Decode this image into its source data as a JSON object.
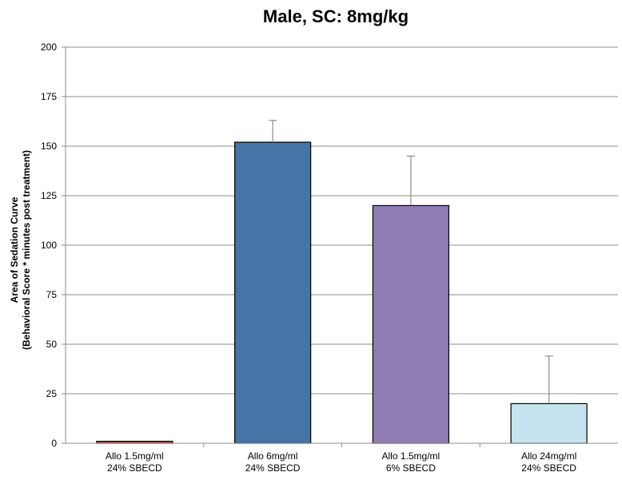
{
  "chart_data": {
    "type": "bar",
    "title": "Male, SC: 8mg/kg",
    "ylabel_line1": "Area of Sedation Curve",
    "ylabel_line2": "(Behavioral Score * minutes post treatment)",
    "xlabel": "",
    "ylim": [
      0,
      200
    ],
    "yticks": [
      0,
      25,
      50,
      75,
      100,
      125,
      150,
      175,
      200
    ],
    "grid": true,
    "legend": "none",
    "categories": [
      [
        "Allo 1.5mg/ml",
        "24% SBECD"
      ],
      [
        "Allo 6mg/ml",
        "24% SBECD"
      ],
      [
        "Allo 1.5mg/ml",
        "6% SBECD"
      ],
      [
        "Allo 24mg/ml",
        "24% SBECD"
      ]
    ],
    "values": [
      1,
      152,
      120,
      20
    ],
    "error_upper": [
      0,
      11,
      25,
      24
    ],
    "colors": [
      "#c0504d",
      "#4574a6",
      "#8f7db3",
      "#c5e4ef"
    ]
  }
}
